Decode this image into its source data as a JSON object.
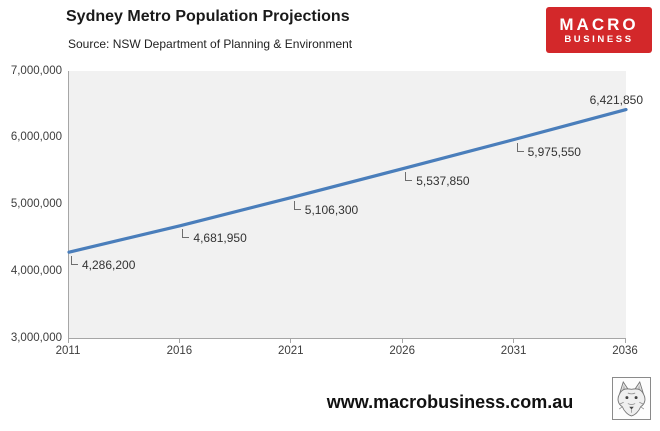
{
  "chart_data": {
    "type": "line",
    "title": "Sydney Metro Population Projections",
    "source": "Source: NSW Department of Planning & Environment",
    "x": [
      2011,
      2016,
      2021,
      2026,
      2031,
      2036
    ],
    "values": [
      4286200,
      4681950,
      5106300,
      5537850,
      5975550,
      6421850
    ],
    "data_labels": [
      "4,286,200",
      "4,681,950",
      "5,106,300",
      "5,537,850",
      "5,975,550",
      "6,421,850"
    ],
    "xtick_labels": [
      "2011",
      "2016",
      "2021",
      "2026",
      "2031",
      "2036"
    ],
    "ytick_labels": [
      "3,000,000",
      "4,000,000",
      "5,000,000",
      "6,000,000",
      "7,000,000"
    ],
    "xlim": [
      2011,
      2036
    ],
    "ylim": [
      3000000,
      7000000
    ],
    "ytick_step": 1000000,
    "grid": false,
    "legend": "none",
    "line_color": "#4a7ebb",
    "plot_bg": "#f1f1f1",
    "axis_color": "#a6a6a6",
    "label_color": "#333333"
  },
  "logo": {
    "line1": "MACRO",
    "line2": "BUSINESS",
    "bg_color": "#d3282a",
    "text_color": "#ffffff"
  },
  "footer": {
    "url": "www.macrobusiness.com.au",
    "logo_icon": "wolf-sketch-icon"
  }
}
